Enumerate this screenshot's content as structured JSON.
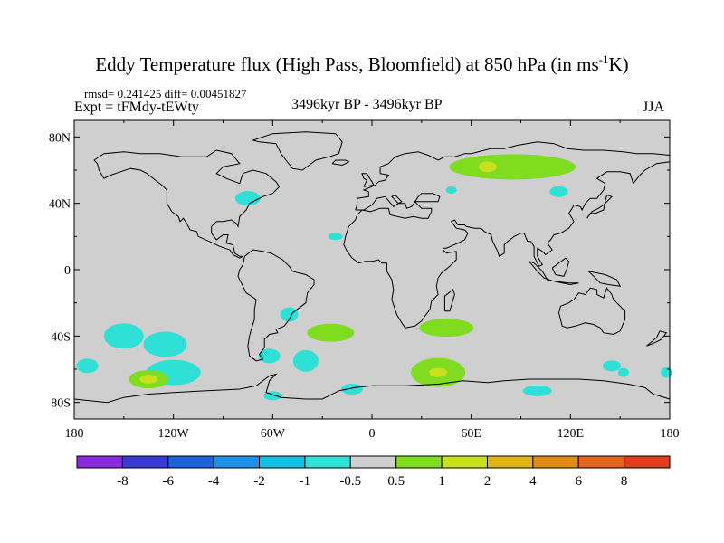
{
  "title_main": "Eddy Temperature flux (High Pass, Bloomfield) at 850 hPa (in ms",
  "title_sup": "-1",
  "title_end": "K)",
  "stats": "rmsd= 0.241425 diff= 0.00451827",
  "expt": "Expt = tFMdy-tEWty",
  "period": "3496kyr BP - 3496kyr BP",
  "season": "JJA",
  "map": {
    "ocean_color": "#cfcfcf",
    "coast_color": "#000000",
    "lat_ticks": [
      {
        "value": 80,
        "label": "80N"
      },
      {
        "value": 40,
        "label": "40N"
      },
      {
        "value": 0,
        "label": "0"
      },
      {
        "value": -40,
        "label": "40S"
      },
      {
        "value": -80,
        "label": "80S"
      }
    ],
    "lon_ticks": [
      {
        "value": -180,
        "label": "180"
      },
      {
        "value": -120,
        "label": "120W"
      },
      {
        "value": -60,
        "label": "60W"
      },
      {
        "value": 0,
        "label": "0"
      },
      {
        "value": 60,
        "label": "60E"
      },
      {
        "value": 120,
        "label": "120E"
      },
      {
        "value": 180,
        "label": "180"
      }
    ]
  },
  "colorbar": {
    "colors": [
      "#8a2be2",
      "#3a3ad6",
      "#1e63d8",
      "#1e90e6",
      "#12c0e6",
      "#2ee0d6",
      "#cfcfcf",
      "#7fdc1e",
      "#c8e01e",
      "#e0b414",
      "#e08c14",
      "#e0641e",
      "#e03c1e"
    ],
    "labels": [
      "-8",
      "-6",
      "-4",
      "-2",
      "-1",
      "-0.5",
      "0.5",
      "1",
      "2",
      "4",
      "6",
      "8"
    ]
  },
  "anomalies": [
    {
      "level": "cyan",
      "lon": -75,
      "lat": 43
    },
    {
      "level": "cyan",
      "lon": -22,
      "lat": 20
    },
    {
      "level": "cyan",
      "lon": 48,
      "lat": 48
    },
    {
      "level": "cyan",
      "lon": 113,
      "lat": 47
    },
    {
      "level": "green",
      "lon": 85,
      "lat": 62
    },
    {
      "level": "yellow",
      "lon": 70,
      "lat": 62
    },
    {
      "level": "cyan",
      "lon": -150,
      "lat": -40
    },
    {
      "level": "cyan",
      "lon": -125,
      "lat": -45
    },
    {
      "level": "cyan",
      "lon": -120,
      "lat": -62
    },
    {
      "level": "green",
      "lon": -135,
      "lat": -66
    },
    {
      "level": "yellow",
      "lon": -135,
      "lat": -66
    },
    {
      "level": "cyan",
      "lon": -172,
      "lat": -58
    },
    {
      "level": "cyan",
      "lon": -50,
      "lat": -27
    },
    {
      "level": "cyan",
      "lon": -62,
      "lat": -52
    },
    {
      "level": "green",
      "lon": -25,
      "lat": -38
    },
    {
      "level": "green",
      "lon": 45,
      "lat": -35
    },
    {
      "level": "cyan",
      "lon": -40,
      "lat": -55
    },
    {
      "level": "green",
      "lon": 40,
      "lat": -62
    },
    {
      "level": "yellow",
      "lon": 40,
      "lat": -62
    },
    {
      "level": "cyan",
      "lon": 100,
      "lat": -73
    },
    {
      "level": "cyan",
      "lon": 145,
      "lat": -58
    },
    {
      "level": "cyan",
      "lon": 152,
      "lat": -62
    },
    {
      "level": "cyan",
      "lon": -60,
      "lat": -76
    },
    {
      "level": "cyan",
      "lon": -12,
      "lat": -72
    },
    {
      "level": "cyan",
      "lon": 178,
      "lat": -62
    }
  ]
}
